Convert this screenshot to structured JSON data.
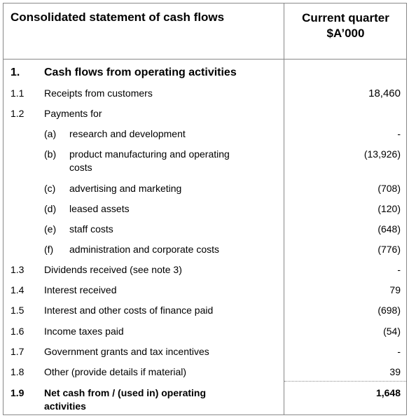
{
  "header": {
    "title": "Consolidated statement of cash flows",
    "column_line1": "Current quarter",
    "column_line2": "$A’000"
  },
  "section": {
    "num": "1.",
    "label": "Cash flows from operating activities"
  },
  "rows": {
    "r1_1": {
      "num": "1.1",
      "label": "Receipts from customers",
      "value": "18,460"
    },
    "r1_2": {
      "num": "1.2",
      "label": "Payments for"
    },
    "a": {
      "letter": "(a)",
      "label": "research and development",
      "value": "-"
    },
    "b": {
      "letter": "(b)",
      "label_line1": "product manufacturing and operating",
      "label_line2": "costs",
      "value": "(13,926)"
    },
    "c": {
      "letter": "(c)",
      "label": "advertising and marketing",
      "value": "(708)"
    },
    "d": {
      "letter": "(d)",
      "label": "leased assets",
      "value": "(120)"
    },
    "e": {
      "letter": "(e)",
      "label": "staff costs",
      "value": "(648)"
    },
    "f": {
      "letter": "(f)",
      "label": "administration and corporate costs",
      "value": "(776)"
    },
    "r1_3": {
      "num": "1.3",
      "label": "Dividends received (see note 3)",
      "value": "-"
    },
    "r1_4": {
      "num": "1.4",
      "label": "Interest received",
      "value": "79"
    },
    "r1_5": {
      "num": "1.5",
      "label": "Interest and other costs of finance paid",
      "value": "(698)"
    },
    "r1_6": {
      "num": "1.6",
      "label": "Income taxes paid",
      "value": "(54)"
    },
    "r1_7": {
      "num": "1.7",
      "label": "Government grants and tax incentives",
      "value": "-"
    },
    "r1_8": {
      "num": "1.8",
      "label": "Other (provide details if material)",
      "value": "39"
    },
    "r1_9": {
      "num": "1.9",
      "label_line1": "Net cash from / (used in) operating",
      "label_line2": "activities",
      "value": "1,648"
    }
  }
}
